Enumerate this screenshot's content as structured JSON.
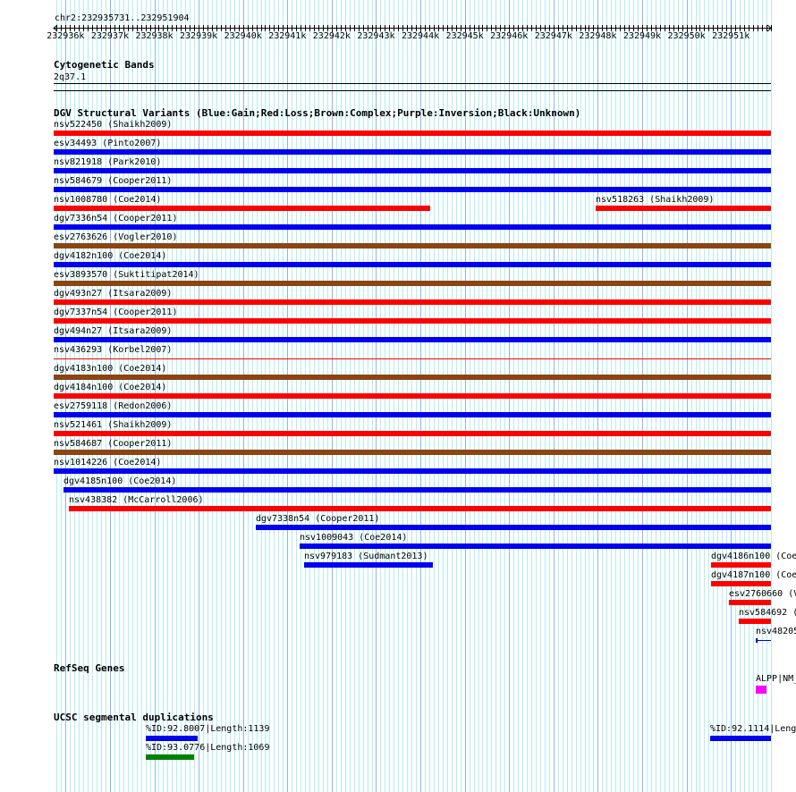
{
  "ruler": {
    "title": "chr2:232935731..232951904",
    "start": 232935731,
    "end": 232951904,
    "ticks": [
      "232936k",
      "232937k",
      "232938k",
      "232939k",
      "232940k",
      "232941k",
      "232942k",
      "232943k",
      "232944k",
      "232945k",
      "232946k",
      "232947k",
      "232948k",
      "232949k",
      "232950k",
      "232951k"
    ]
  },
  "cytobands": {
    "title": "Cytogenetic Bands",
    "band": "2q37.1"
  },
  "dgv": {
    "title": "DGV Structural Variants (Blue:Gain;Red:Loss;Brown:Complex;Purple:Inversion;Black:Unknown)",
    "colors": {
      "gain": "#0000ee",
      "loss": "#ff0000",
      "complex": "#8b4513"
    },
    "items": [
      {
        "label": "nsv522450 (Shaikh2009)",
        "type": "loss",
        "row": 0,
        "start": 232935731,
        "end": 232951904
      },
      {
        "label": "esv34493 (Pinto2007)",
        "type": "gain",
        "row": 1,
        "start": 232935731,
        "end": 232951904
      },
      {
        "label": "nsv821918 (Park2010)",
        "type": "gain",
        "row": 2,
        "start": 232935731,
        "end": 232951904
      },
      {
        "label": "nsv584679 (Cooper2011)",
        "type": "gain",
        "row": 3,
        "start": 232935731,
        "end": 232951904
      },
      {
        "label": "nsv1008780 (Coe2014)",
        "type": "loss",
        "row": 4,
        "start": 232935731,
        "end": 232944221
      },
      {
        "label": "nsv518263 (Shaikh2009)",
        "type": "loss",
        "row": 4,
        "start": 232947951,
        "end": 232951904
      },
      {
        "label": "dgv7336n54 (Cooper2011)",
        "type": "gain",
        "row": 5,
        "start": 232935731,
        "end": 232951904
      },
      {
        "label": "esv2763626 (Vogler2010)",
        "type": "complex",
        "row": 6,
        "start": 232935731,
        "end": 232951904
      },
      {
        "label": "dgv4182n100 (Coe2014)",
        "type": "gain",
        "row": 7,
        "start": 232935731,
        "end": 232951904
      },
      {
        "label": "esv3893570 (Suktitipat2014)",
        "type": "complex",
        "row": 8,
        "start": 232935731,
        "end": 232951904
      },
      {
        "label": "dgv493n27 (Itsara2009)",
        "type": "loss",
        "row": 9,
        "start": 232935731,
        "end": 232951904
      },
      {
        "label": "dgv7337n54 (Cooper2011)",
        "type": "loss",
        "row": 10,
        "start": 232935731,
        "end": 232951904
      },
      {
        "label": "dgv494n27 (Itsara2009)",
        "type": "gain",
        "row": 11,
        "start": 232935731,
        "end": 232951904
      },
      {
        "label": "nsv436293 (Korbel2007)",
        "type": "loss",
        "row": 12,
        "start": 232935731,
        "end": 232951904,
        "thin": true
      },
      {
        "label": "dgv4183n100 (Coe2014)",
        "type": "complex",
        "row": 13,
        "start": 232935731,
        "end": 232951904
      },
      {
        "label": "dgv4184n100 (Coe2014)",
        "type": "loss",
        "row": 14,
        "start": 232935731,
        "end": 232951904
      },
      {
        "label": "esv2759118 (Redon2006)",
        "type": "gain",
        "row": 15,
        "start": 232935731,
        "end": 232951904
      },
      {
        "label": "nsv521461 (Shaikh2009)",
        "type": "loss",
        "row": 16,
        "start": 232935731,
        "end": 232951904
      },
      {
        "label": "nsv584687 (Cooper2011)",
        "type": "complex",
        "row": 17,
        "start": 232935731,
        "end": 232951904
      },
      {
        "label": "nsv1014226 (Coe2014)",
        "type": "gain",
        "row": 18,
        "start": 232935731,
        "end": 232951904
      },
      {
        "label": "dgv4185n100 (Coe2014)",
        "type": "gain",
        "row": 19,
        "start": 232935953,
        "end": 232951904
      },
      {
        "label": "nsv438382 (McCarroll2006)",
        "type": "loss",
        "row": 20,
        "start": 232936074,
        "end": 232951904
      },
      {
        "label": "dgv7338n54 (Cooper2011)",
        "type": "gain",
        "row": 21,
        "start": 232940288,
        "end": 232951904
      },
      {
        "label": "nsv1009043 (Coe2014)",
        "type": "gain",
        "row": 22,
        "start": 232941276,
        "end": 232951904
      },
      {
        "label": "nsv979183 (Sudmant2013)",
        "type": "gain",
        "row": 23,
        "start": 232941377,
        "end": 232944281
      },
      {
        "label": "dgv4186n100 (Coe",
        "type": "loss",
        "row": 23,
        "start": 232950553,
        "end": 232951904
      },
      {
        "label": "dgv4187n100 (Coe",
        "type": "loss",
        "row": 24,
        "start": 232950553,
        "end": 232951904
      },
      {
        "label": "esv2760660 (V",
        "type": "loss",
        "row": 25,
        "start": 232950956,
        "end": 232951904
      },
      {
        "label": "nsv584692 (",
        "type": "loss",
        "row": 26,
        "start": 232951178,
        "end": 232951904
      },
      {
        "label": "nsv48205",
        "type": "gain",
        "row": 27,
        "start": 232951561,
        "end": 232951904,
        "thin": true
      }
    ]
  },
  "refseq": {
    "title": "RefSeq Genes",
    "gene": {
      "label": "ALPP|NM_",
      "start": 232951561,
      "end": 232951804,
      "color": "#ff00ff"
    }
  },
  "segdups": {
    "title": "UCSC segmental duplications",
    "items": [
      {
        "label": "%ID:92.8007|Length:1139",
        "row": 0,
        "start": 232937808,
        "end": 232938978,
        "color": "#0000ee"
      },
      {
        "label": "%ID:93.0776|Length:1069",
        "row": 1,
        "start": 232937808,
        "end": 232938897,
        "color": "#008000"
      },
      {
        "label": "%ID:92.1114|Leng",
        "row": 0,
        "start": 232950533,
        "end": 232951904,
        "color": "#0000ee"
      }
    ]
  }
}
